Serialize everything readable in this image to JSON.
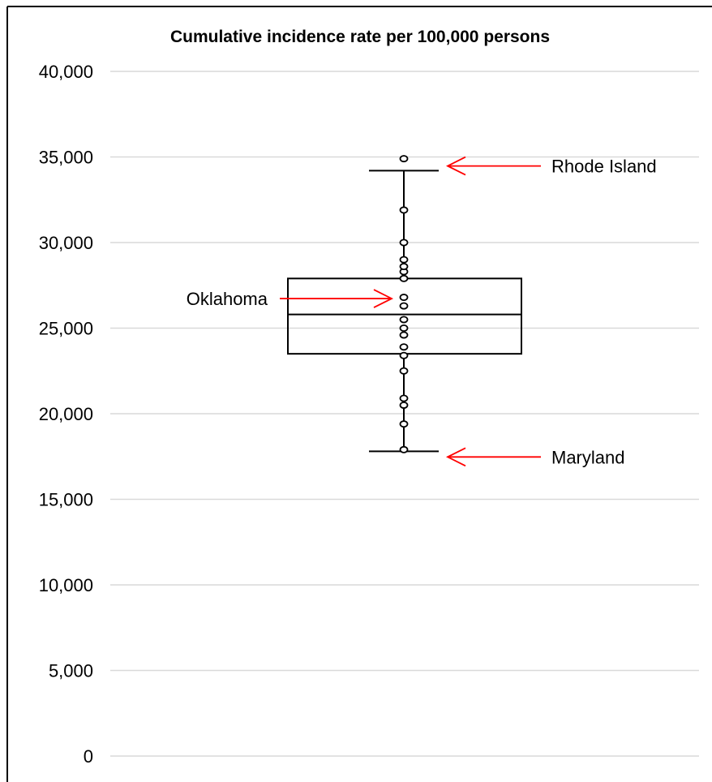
{
  "chart_data": {
    "type": "box",
    "title": "Cumulative incidence rate per 100,000 persons",
    "xlabel": "",
    "ylabel": "",
    "ylim": [
      0,
      40000
    ],
    "y_ticks": [
      0,
      5000,
      10000,
      15000,
      20000,
      25000,
      30000,
      35000,
      40000
    ],
    "y_tick_labels": [
      "0",
      "5,000",
      "10,000",
      "15,000",
      "20,000",
      "25,000",
      "30,000",
      "35,000",
      "40,000"
    ],
    "grid": true,
    "box": {
      "q1": 23500,
      "median": 25800,
      "q3": 27900,
      "whisker_low": 17800,
      "whisker_high": 34200
    },
    "points": [
      17900,
      19400,
      20500,
      20900,
      22500,
      23400,
      23900,
      24600,
      25000,
      25500,
      26300,
      26800,
      27900,
      28300,
      28600,
      29000,
      30000,
      31900,
      34900
    ],
    "annotations": [
      {
        "label": "Rhode Island",
        "value": 34900,
        "side": "right"
      },
      {
        "label": "Oklahoma",
        "value": 26300,
        "side": "left"
      },
      {
        "label": "Maryland",
        "value": 17900,
        "side": "right"
      }
    ],
    "colors": {
      "grid": "#d9d9d9",
      "box": "#000000",
      "arrow": "#ff0000",
      "frame": "#000000"
    }
  }
}
